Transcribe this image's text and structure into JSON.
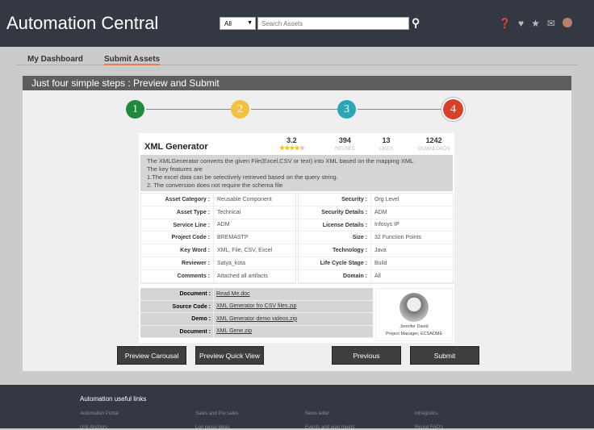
{
  "header": {
    "title": "Automation Central",
    "filter": "All",
    "search_placeholder": "Search Assets",
    "icons": [
      "help-icon",
      "heart-icon",
      "star-icon",
      "mail-icon",
      "avatar"
    ]
  },
  "tabs": [
    {
      "label": "My Dashboard",
      "active": false
    },
    {
      "label": "Submit Assets",
      "active": true
    }
  ],
  "panel": {
    "title": "Just four simple steps : Preview and Submit",
    "steps": [
      {
        "n": "1",
        "color": "#1e8a3c"
      },
      {
        "n": "2",
        "color": "#f4c040"
      },
      {
        "n": "3",
        "color": "#2aa6b8"
      },
      {
        "n": "4",
        "color": "#d9402a",
        "active": true
      }
    ]
  },
  "asset": {
    "name": "XML Generator",
    "rating": "3.2",
    "rating_value": 3.2,
    "reuses": "394",
    "reuses_label": "REUSES",
    "likes": "13",
    "likes_label": "LIKES",
    "downloads": "1242",
    "downloads_label": "DOWNLOADS",
    "description": [
      "The XMLGenerator converts the given File(Excel,CSV or text) into XML based on the mapping XML.",
      "The key features are",
      "1.The excel data can be selectively retrieved based on the query string.",
      "2. The conversion does not require the schema file"
    ],
    "left": [
      {
        "k": "Asset Category :",
        "v": "Reusable Component"
      },
      {
        "k": "Asset Type :",
        "v": "Technical"
      },
      {
        "k": "Service Line :",
        "v": "ADM"
      },
      {
        "k": "Project Code :",
        "v": "BREMASTP"
      },
      {
        "k": "Key Word :",
        "v": "XML, File, CSV, Excel"
      },
      {
        "k": "Reviewer :",
        "v": "Satya_kota"
      },
      {
        "k": "Comments :",
        "v": "Attached all artifacts"
      }
    ],
    "right": [
      {
        "k": "Security :",
        "v": "Org Level"
      },
      {
        "k": "Security Details :",
        "v": "ADM"
      },
      {
        "k": "License Details :",
        "v": "Infosys IP"
      },
      {
        "k": "Size :",
        "v": "32 Function Points"
      },
      {
        "k": "Technology :",
        "v": "Java"
      },
      {
        "k": "Life Cycle Stage :",
        "v": "Build"
      },
      {
        "k": "Domain :",
        "v": "All"
      }
    ],
    "docs": [
      {
        "k": "Document :",
        "v": "Read Me.doc"
      },
      {
        "k": "Source Code :",
        "v": "XML Generator fro CSV files.zip"
      },
      {
        "k": "Demo :",
        "v": "XML Generator demo videos.zip"
      },
      {
        "k": "Document :",
        "v": "XML Gene.zip"
      }
    ],
    "person": {
      "name": "Jennifer David",
      "role": "Project Manager, ECSADME"
    }
  },
  "buttons": {
    "carousel": "Preview Carousal",
    "quick": "Preview Quick View",
    "previous": "Previous",
    "submit": "Submit"
  },
  "footer": {
    "title": "Automation useful links",
    "links": [
      [
        "Automation Portal",
        "Unit Anchors"
      ],
      [
        "Sales and Pre sales",
        "Log reuse ideas"
      ],
      [
        "News letter",
        "Events and user meets"
      ],
      [
        "Infragistics",
        "Reuse FAQ's"
      ]
    ]
  }
}
